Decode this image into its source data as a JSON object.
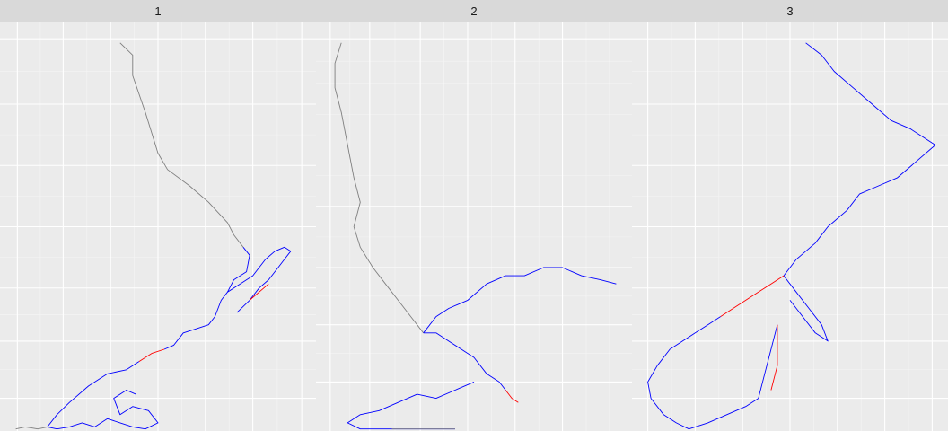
{
  "chart_data": {
    "type": "line",
    "description_of_axes": "",
    "colors": {
      "panel_background": "#ebebeb",
      "strip_background": "#d9d9d9",
      "grid_major": "#ffffff",
      "grid_minor": "#f5f5f5",
      "path_low": "#7f7f7f",
      "path_mid": "#0000ff",
      "path_high": "#ff0000"
    },
    "facets": [
      {
        "label": "1",
        "grid_x": [
          0.055,
          0.2,
          0.35,
          0.5,
          0.65,
          0.8,
          0.955
        ],
        "grid_y": [
          0.04,
          0.2,
          0.35,
          0.5,
          0.65,
          0.78,
          0.92
        ],
        "segments": [
          {
            "color": "#7f7f7f",
            "points": [
              [
                0.38,
                0.05
              ],
              [
                0.42,
                0.08
              ],
              [
                0.42,
                0.13
              ],
              [
                0.46,
                0.22
              ],
              [
                0.5,
                0.32
              ],
              [
                0.53,
                0.36
              ],
              [
                0.6,
                0.4
              ],
              [
                0.66,
                0.44
              ],
              [
                0.72,
                0.49
              ],
              [
                0.74,
                0.52
              ],
              [
                0.77,
                0.55
              ]
            ]
          },
          {
            "color": "#0000ff",
            "points": [
              [
                0.77,
                0.55
              ],
              [
                0.79,
                0.57
              ],
              [
                0.78,
                0.61
              ],
              [
                0.74,
                0.63
              ],
              [
                0.72,
                0.66
              ],
              [
                0.7,
                0.68
              ],
              [
                0.68,
                0.72
              ],
              [
                0.66,
                0.74
              ],
              [
                0.62,
                0.75
              ],
              [
                0.58,
                0.76
              ],
              [
                0.55,
                0.79
              ],
              [
                0.52,
                0.8
              ]
            ]
          },
          {
            "color": "#ff0000",
            "points": [
              [
                0.52,
                0.8
              ],
              [
                0.48,
                0.81
              ],
              [
                0.44,
                0.83
              ]
            ]
          },
          {
            "color": "#0000ff",
            "points": [
              [
                0.44,
                0.83
              ],
              [
                0.4,
                0.85
              ],
              [
                0.34,
                0.86
              ],
              [
                0.28,
                0.89
              ],
              [
                0.22,
                0.93
              ],
              [
                0.18,
                0.96
              ],
              [
                0.15,
                0.99
              ],
              [
                0.18,
                1.0
              ],
              [
                0.22,
                0.99
              ],
              [
                0.26,
                0.98
              ],
              [
                0.3,
                0.99
              ],
              [
                0.34,
                0.97
              ],
              [
                0.38,
                0.98
              ],
              [
                0.42,
                0.99
              ],
              [
                0.46,
                1.0
              ],
              [
                0.5,
                0.98
              ],
              [
                0.47,
                0.95
              ],
              [
                0.42,
                0.94
              ],
              [
                0.38,
                0.96
              ],
              [
                0.36,
                0.92
              ],
              [
                0.4,
                0.9
              ],
              [
                0.43,
                0.91
              ]
            ]
          },
          {
            "color": "#7f7f7f",
            "points": [
              [
                0.15,
                0.99
              ],
              [
                0.12,
                1.0
              ],
              [
                0.08,
                0.99
              ],
              [
                0.05,
                1.0
              ]
            ]
          },
          {
            "color": "#0000ff",
            "points": [
              [
                0.72,
                0.66
              ],
              [
                0.76,
                0.64
              ],
              [
                0.8,
                0.62
              ],
              [
                0.84,
                0.58
              ],
              [
                0.87,
                0.56
              ],
              [
                0.9,
                0.55
              ],
              [
                0.92,
                0.56
              ],
              [
                0.9,
                0.58
              ],
              [
                0.88,
                0.6
              ],
              [
                0.85,
                0.63
              ],
              [
                0.82,
                0.65
              ],
              [
                0.79,
                0.68
              ],
              [
                0.75,
                0.71
              ]
            ]
          },
          {
            "color": "#ff0000",
            "points": [
              [
                0.79,
                0.68
              ],
              [
                0.82,
                0.66
              ],
              [
                0.85,
                0.64
              ]
            ]
          }
        ]
      },
      {
        "label": "2",
        "grid_x": [
          0.045,
          0.17,
          0.33,
          0.48,
          0.63,
          0.78,
          0.93
        ],
        "grid_y": [
          0.04,
          0.15,
          0.3,
          0.45,
          0.6,
          0.74,
          0.88
        ],
        "segments": [
          {
            "color": "#7f7f7f",
            "points": [
              [
                0.08,
                0.05
              ],
              [
                0.06,
                0.1
              ],
              [
                0.06,
                0.16
              ],
              [
                0.08,
                0.22
              ],
              [
                0.1,
                0.3
              ],
              [
                0.12,
                0.38
              ],
              [
                0.14,
                0.44
              ],
              [
                0.12,
                0.5
              ],
              [
                0.14,
                0.55
              ],
              [
                0.18,
                0.6
              ],
              [
                0.22,
                0.64
              ],
              [
                0.26,
                0.68
              ],
              [
                0.3,
                0.72
              ],
              [
                0.34,
                0.76
              ]
            ]
          },
          {
            "color": "#0000ff",
            "points": [
              [
                0.34,
                0.76
              ],
              [
                0.38,
                0.76
              ],
              [
                0.42,
                0.78
              ],
              [
                0.46,
                0.8
              ],
              [
                0.5,
                0.82
              ],
              [
                0.54,
                0.86
              ],
              [
                0.58,
                0.88
              ],
              [
                0.6,
                0.9
              ]
            ]
          },
          {
            "color": "#ff0000",
            "points": [
              [
                0.6,
                0.9
              ],
              [
                0.62,
                0.92
              ],
              [
                0.64,
                0.93
              ]
            ]
          },
          {
            "color": "#0000ff",
            "points": [
              [
                0.34,
                0.76
              ],
              [
                0.38,
                0.72
              ],
              [
                0.42,
                0.7
              ],
              [
                0.48,
                0.68
              ],
              [
                0.54,
                0.64
              ],
              [
                0.6,
                0.62
              ],
              [
                0.66,
                0.62
              ],
              [
                0.72,
                0.6
              ],
              [
                0.78,
                0.6
              ],
              [
                0.84,
                0.62
              ],
              [
                0.9,
                0.63
              ],
              [
                0.95,
                0.64
              ]
            ]
          },
          {
            "color": "#0000ff",
            "points": [
              [
                0.5,
                0.88
              ],
              [
                0.44,
                0.9
              ],
              [
                0.38,
                0.92
              ],
              [
                0.32,
                0.91
              ],
              [
                0.26,
                0.93
              ],
              [
                0.2,
                0.95
              ],
              [
                0.14,
                0.96
              ],
              [
                0.1,
                0.98
              ],
              [
                0.14,
                1.0
              ],
              [
                0.2,
                1.0
              ],
              [
                0.26,
                1.0
              ],
              [
                0.32,
                1.0
              ],
              [
                0.38,
                1.0
              ],
              [
                0.44,
                1.0
              ]
            ]
          },
          {
            "color": "#7f7f7f",
            "points": [
              [
                0.44,
                1.0
              ],
              [
                0.38,
                1.02
              ],
              [
                0.3,
                1.02
              ],
              [
                0.24,
                1.02
              ]
            ]
          }
        ]
      },
      {
        "label": "3",
        "grid_x": [
          0.05,
          0.2,
          0.35,
          0.5,
          0.65,
          0.8,
          0.95
        ],
        "grid_y": [
          0.04,
          0.2,
          0.35,
          0.5,
          0.65,
          0.78,
          0.92
        ],
        "segments": [
          {
            "color": "#0000ff",
            "points": [
              [
                0.55,
                0.05
              ],
              [
                0.6,
                0.08
              ],
              [
                0.64,
                0.12
              ],
              [
                0.7,
                0.16
              ],
              [
                0.76,
                0.2
              ],
              [
                0.82,
                0.24
              ],
              [
                0.88,
                0.26
              ],
              [
                0.92,
                0.28
              ],
              [
                0.96,
                0.3
              ],
              [
                0.9,
                0.34
              ],
              [
                0.84,
                0.38
              ],
              [
                0.78,
                0.4
              ],
              [
                0.72,
                0.42
              ],
              [
                0.68,
                0.46
              ],
              [
                0.62,
                0.5
              ],
              [
                0.58,
                0.54
              ],
              [
                0.52,
                0.58
              ],
              [
                0.48,
                0.62
              ]
            ]
          },
          {
            "color": "#0000ff",
            "points": [
              [
                0.48,
                0.62
              ],
              [
                0.52,
                0.66
              ],
              [
                0.56,
                0.7
              ],
              [
                0.6,
                0.74
              ],
              [
                0.62,
                0.78
              ],
              [
                0.58,
                0.76
              ],
              [
                0.54,
                0.72
              ],
              [
                0.5,
                0.68
              ]
            ]
          },
          {
            "color": "#ff0000",
            "points": [
              [
                0.48,
                0.62
              ],
              [
                0.44,
                0.64
              ],
              [
                0.4,
                0.66
              ],
              [
                0.36,
                0.68
              ],
              [
                0.32,
                0.7
              ],
              [
                0.28,
                0.72
              ]
            ]
          },
          {
            "color": "#0000ff",
            "points": [
              [
                0.28,
                0.72
              ],
              [
                0.24,
                0.74
              ],
              [
                0.2,
                0.76
              ],
              [
                0.16,
                0.78
              ],
              [
                0.12,
                0.8
              ],
              [
                0.08,
                0.84
              ],
              [
                0.05,
                0.88
              ],
              [
                0.06,
                0.92
              ],
              [
                0.1,
                0.96
              ],
              [
                0.14,
                0.98
              ],
              [
                0.18,
                1.0
              ],
              [
                0.24,
                0.98
              ],
              [
                0.3,
                0.96
              ],
              [
                0.36,
                0.94
              ],
              [
                0.4,
                0.92
              ],
              [
                0.42,
                0.86
              ],
              [
                0.44,
                0.8
              ],
              [
                0.46,
                0.74
              ]
            ]
          },
          {
            "color": "#ff0000",
            "points": [
              [
                0.46,
                0.74
              ],
              [
                0.46,
                0.84
              ],
              [
                0.44,
                0.9
              ]
            ]
          }
        ]
      }
    ]
  }
}
